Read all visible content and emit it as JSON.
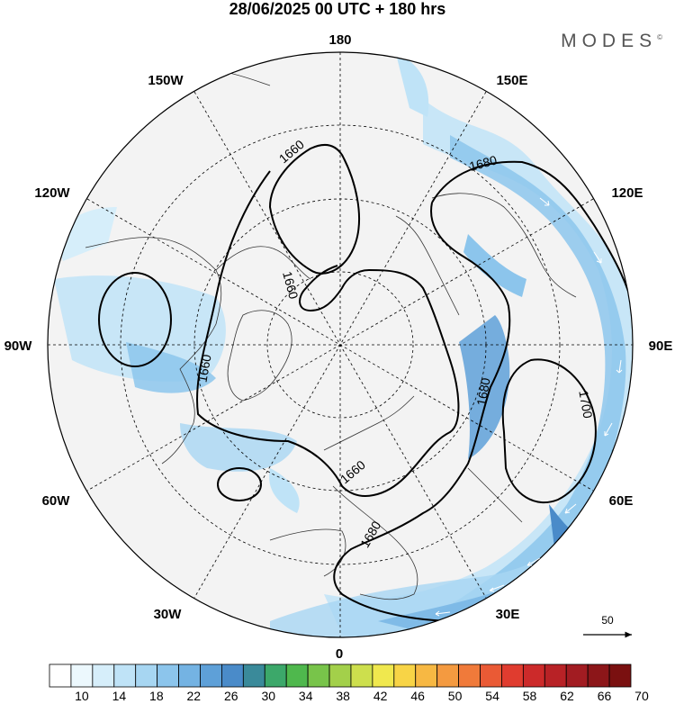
{
  "title": "28/06/2025  00 UTC  + 180 hrs",
  "brand": "MODES",
  "brand_mark": "©",
  "longitude_labels": {
    "lon_180": "180",
    "lon_150w": "150W",
    "lon_150e": "150E",
    "lon_120w": "120W",
    "lon_120e": "120E",
    "lon_90w": "90W",
    "lon_90e": "90E",
    "lon_60w": "60W",
    "lon_60e": "60E",
    "lon_30w": "30W",
    "lon_30e": "30E",
    "lon_0": "0"
  },
  "contour_labels": {
    "c1660_top": "1660",
    "c1660_inner": "1660",
    "c1660_west": "1660",
    "c1660_east": "1660",
    "c1680_ne": "1680",
    "c1680_e": "1680",
    "c1680_s": "1680",
    "c1700": "1700"
  },
  "wind_reference": "50",
  "colorbar": {
    "labels": [
      "10",
      "14",
      "18",
      "22",
      "26",
      "30",
      "34",
      "38",
      "42",
      "46",
      "50",
      "54",
      "58",
      "62",
      "66",
      "70"
    ],
    "colors": [
      "#ffffff",
      "#ecf8fd",
      "#d6eefa",
      "#bfe3f7",
      "#a7d6f2",
      "#8cc5ec",
      "#74b3e3",
      "#5ea0d8",
      "#4a8bc9",
      "#3a8a9a",
      "#3ca86a",
      "#4fb84d",
      "#78c44a",
      "#a3d04a",
      "#cddf4d",
      "#f0e84e",
      "#f8d446",
      "#f7b843",
      "#f49a40",
      "#f07a3a",
      "#ea5a35",
      "#e03c2f",
      "#cc2a2a",
      "#b82226",
      "#a21c22",
      "#8c1619",
      "#7a1010"
    ]
  }
}
